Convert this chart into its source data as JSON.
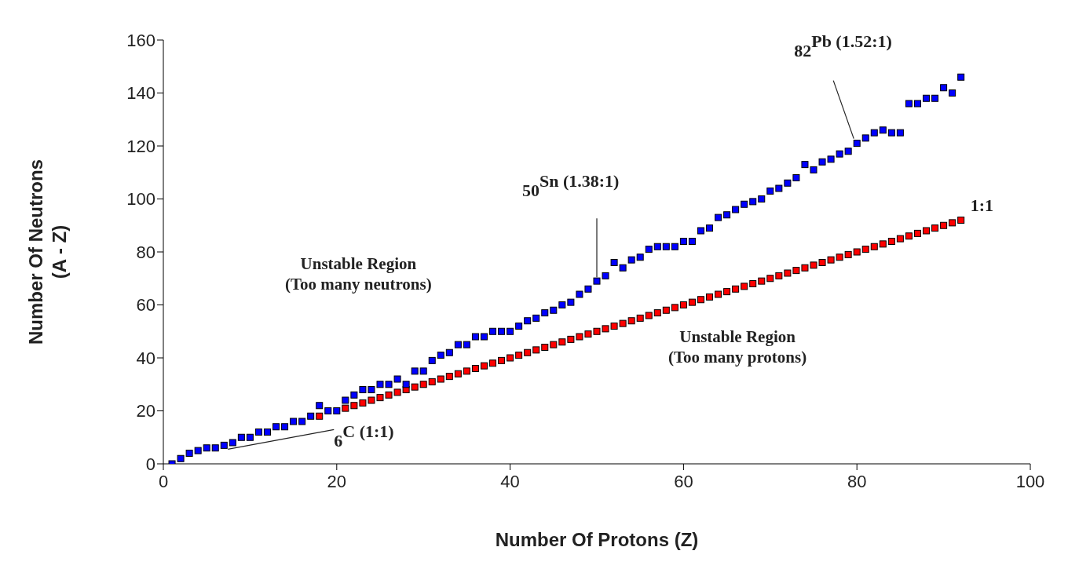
{
  "chart_data": {
    "type": "scatter",
    "xlabel": "Number Of Protons (Z)",
    "ylabel": "Number Of Neutrons\n(A - Z)",
    "x": [
      1,
      2,
      3,
      4,
      5,
      6,
      7,
      8,
      9,
      10,
      11,
      12,
      13,
      14,
      15,
      16,
      17,
      18,
      19,
      20,
      21,
      22,
      23,
      24,
      25,
      26,
      27,
      28,
      29,
      30,
      31,
      32,
      33,
      34,
      35,
      36,
      37,
      38,
      39,
      40,
      41,
      42,
      43,
      44,
      45,
      46,
      47,
      48,
      49,
      50,
      51,
      52,
      53,
      54,
      55,
      56,
      57,
      58,
      59,
      60,
      61,
      62,
      63,
      64,
      65,
      66,
      67,
      68,
      69,
      70,
      71,
      72,
      73,
      74,
      75,
      76,
      77,
      78,
      79,
      80,
      81,
      82,
      83,
      84,
      85,
      86,
      87,
      88,
      89,
      90,
      91,
      92
    ],
    "series": [
      {
        "color": "#ff0000",
        "values": [
          null,
          null,
          null,
          null,
          null,
          null,
          null,
          null,
          null,
          null,
          null,
          null,
          null,
          null,
          null,
          null,
          null,
          18,
          null,
          null,
          21,
          22,
          23,
          24,
          25,
          26,
          27,
          28,
          29,
          30,
          31,
          32,
          33,
          34,
          35,
          36,
          37,
          38,
          39,
          40,
          41,
          42,
          43,
          44,
          45,
          46,
          47,
          48,
          49,
          50,
          51,
          52,
          53,
          54,
          55,
          56,
          57,
          58,
          59,
          60,
          61,
          62,
          63,
          64,
          65,
          66,
          67,
          68,
          69,
          70,
          71,
          72,
          73,
          74,
          75,
          76,
          77,
          78,
          79,
          80,
          81,
          82,
          83,
          84,
          85,
          86,
          87,
          88,
          89,
          90,
          91,
          92
        ]
      },
      {
        "color": "#0000ff",
        "values": [
          0,
          2,
          4,
          5,
          6,
          6,
          7,
          8,
          10,
          10,
          12,
          12,
          14,
          14,
          16,
          16,
          18,
          22,
          20,
          20,
          24,
          26,
          28,
          28,
          30,
          30,
          32,
          30,
          35,
          35,
          39,
          41,
          42,
          45,
          45,
          48,
          48,
          50,
          50,
          50,
          52,
          54,
          55,
          57,
          58,
          60,
          61,
          64,
          66,
          69,
          71,
          76,
          74,
          77,
          78,
          81,
          82,
          82,
          82,
          84,
          84,
          88,
          89,
          93,
          94,
          96,
          98,
          99,
          100,
          103,
          104,
          106,
          108,
          113,
          111,
          114,
          115,
          117,
          118,
          121,
          123,
          125,
          126,
          125,
          125,
          136,
          136,
          138,
          138,
          142,
          140,
          146
        ]
      }
    ],
    "xlim": [
      0,
      100
    ],
    "xticks": [
      0,
      20,
      40,
      60,
      80,
      100
    ],
    "ylim": [
      0,
      160
    ],
    "yticks": [
      0,
      20,
      40,
      60,
      80,
      100,
      120,
      140,
      160
    ],
    "marker": "square",
    "grid": false,
    "legend": false,
    "annotations": [
      {
        "text": "$_{6}$C (1:1)",
        "x": 7,
        "y": 7
      },
      {
        "text": "$_{50}$Sn (1.38:1)",
        "x": 50,
        "y": 69
      },
      {
        "text": "$_{82}$Pb (1.52:1)",
        "x": 80,
        "y": 121
      },
      {
        "text": "1:1",
        "x": 92,
        "y": 92
      },
      "Unstable Region\n(Too many neutrons)",
      "Unstable Region\n(Too many protons)"
    ]
  }
}
